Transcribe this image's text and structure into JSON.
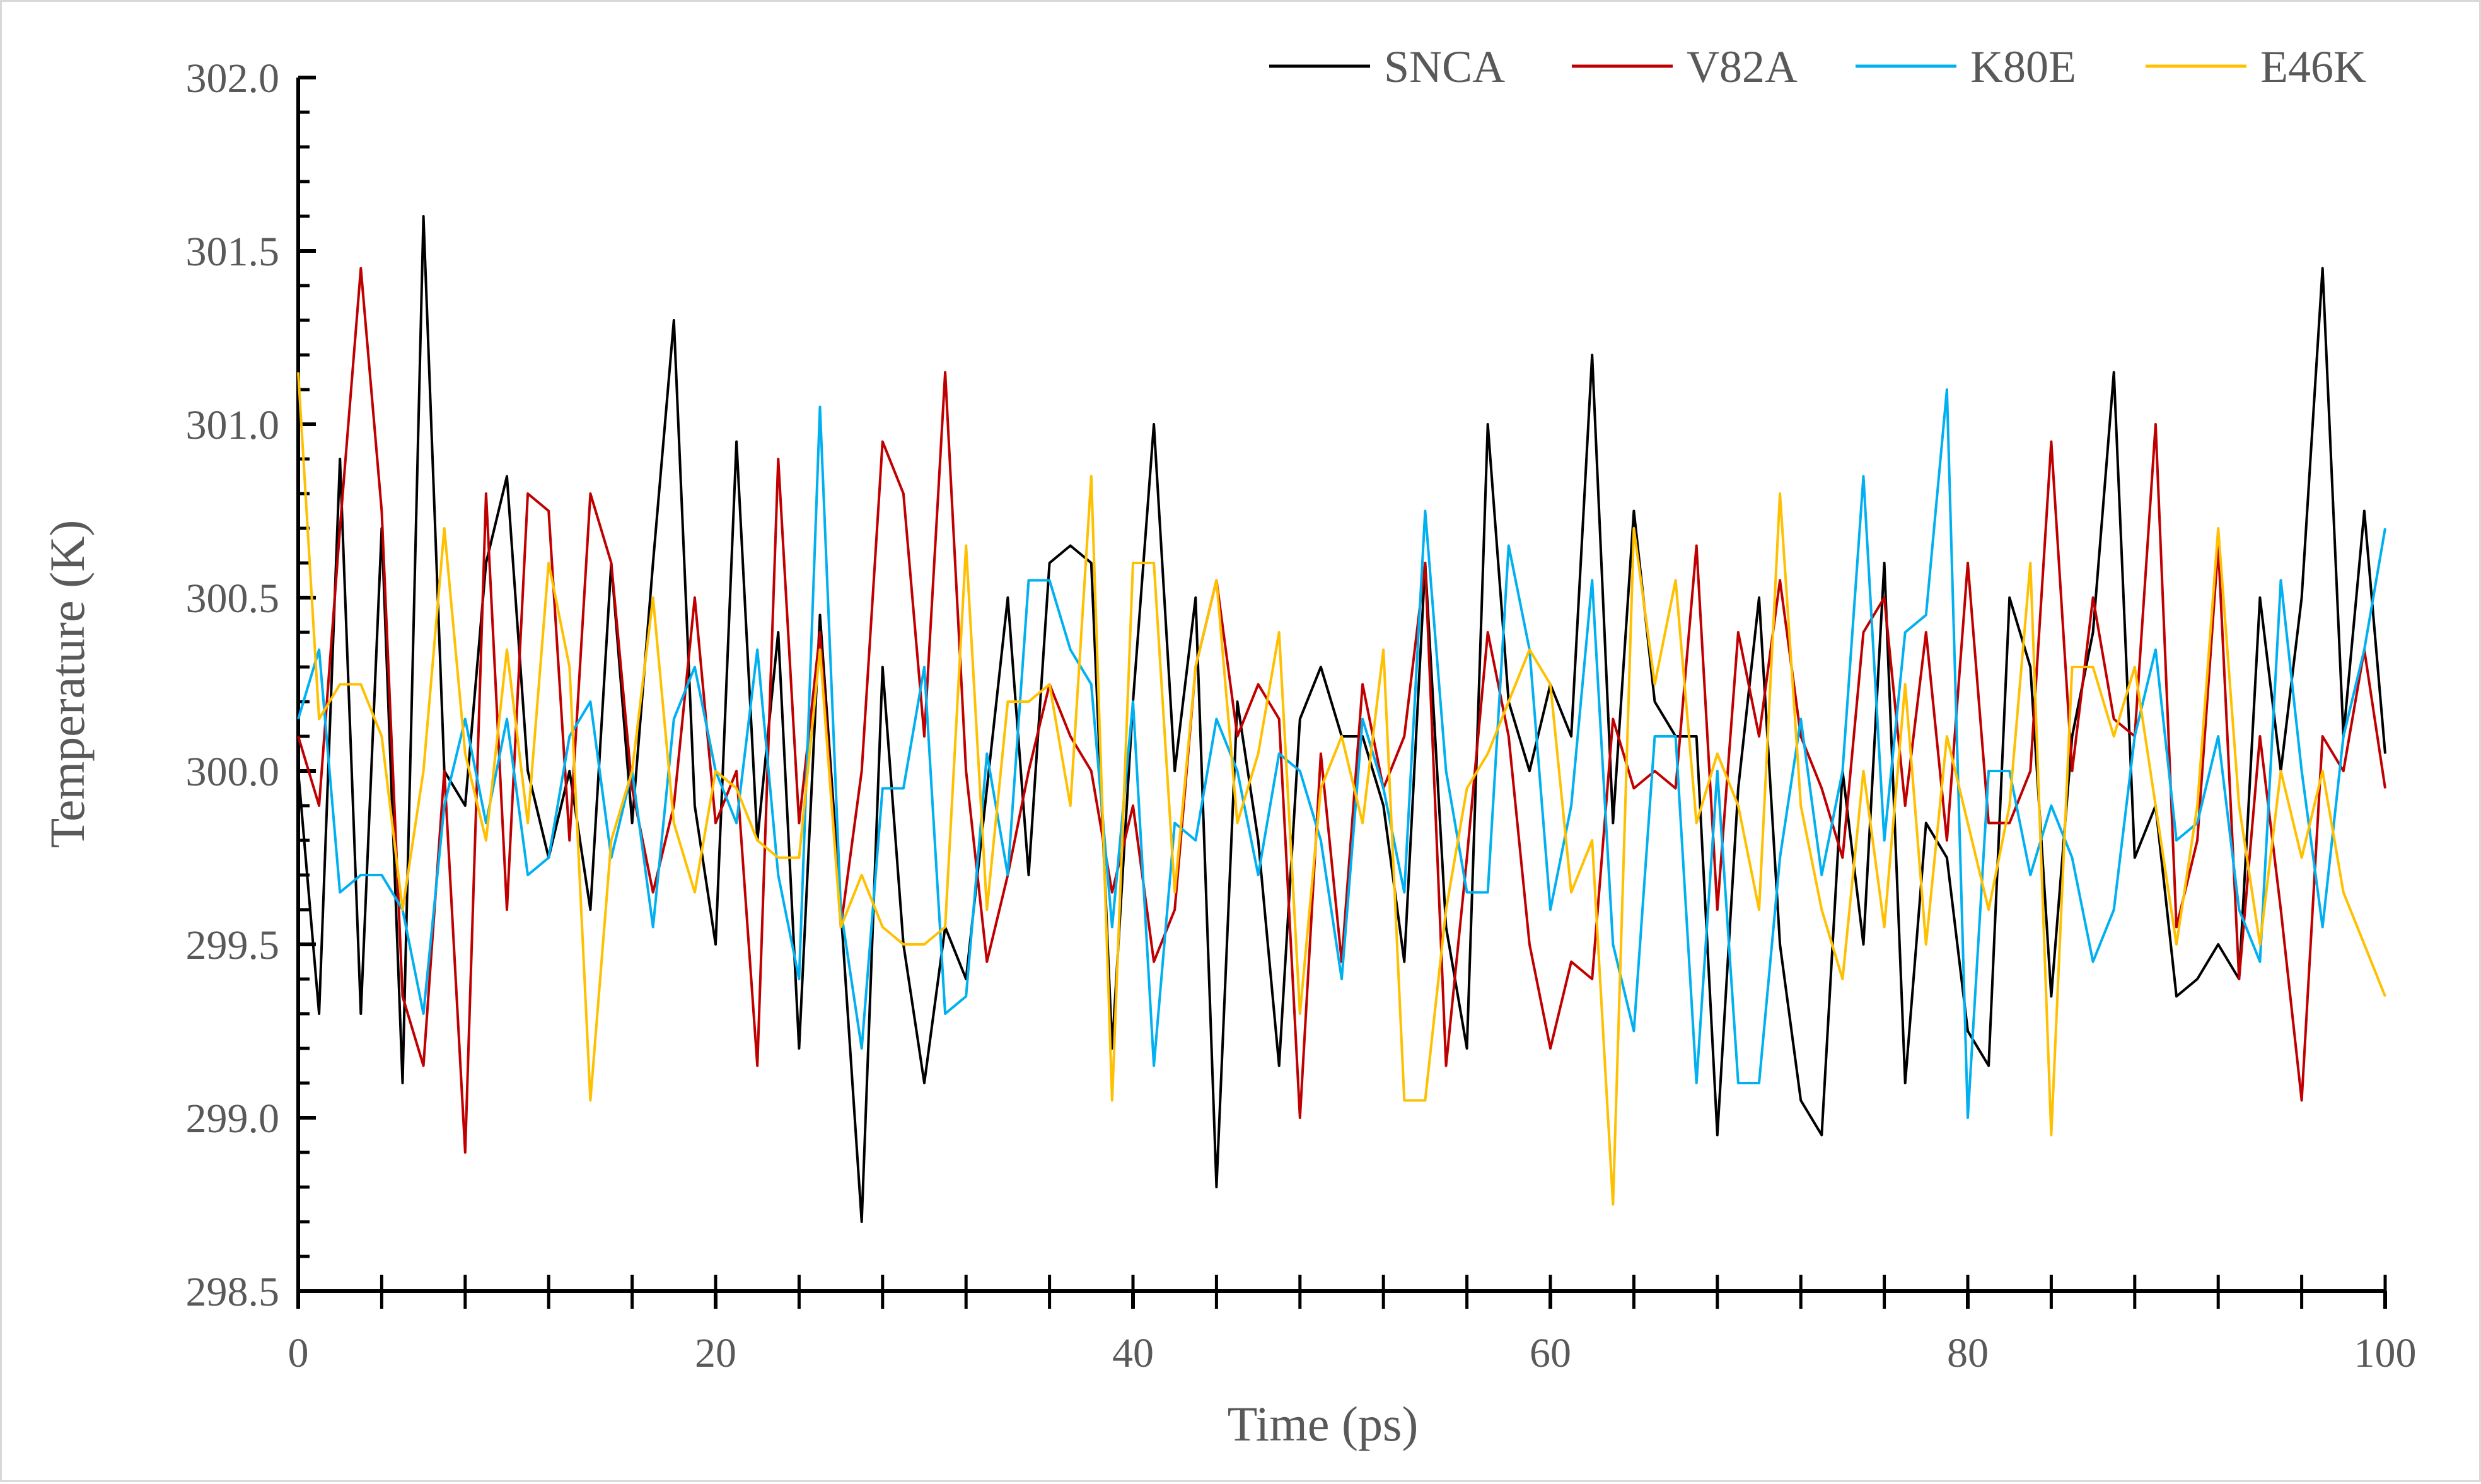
{
  "chart_data": {
    "type": "line",
    "title": "",
    "xlabel": "Time (ps)",
    "ylabel": "Temperature (K)",
    "xlim": [
      0,
      100
    ],
    "ylim": [
      298.5,
      302.0
    ],
    "xticks": [
      "0",
      "20",
      "40",
      "60",
      "80",
      "100"
    ],
    "yticks": [
      "298.5",
      "299.0",
      "299.5",
      "300.0",
      "300.5",
      "301.0",
      "301.5",
      "302.0"
    ],
    "grid": false,
    "legend_position": "top-right",
    "x": [
      0,
      1,
      2,
      3,
      4,
      5,
      6,
      7,
      8,
      9,
      10,
      11,
      12,
      13,
      14,
      15,
      16,
      17,
      18,
      19,
      20,
      21,
      22,
      23,
      24,
      25,
      26,
      27,
      28,
      29,
      30,
      31,
      32,
      33,
      34,
      35,
      36,
      37,
      38,
      39,
      40,
      41,
      42,
      43,
      44,
      45,
      46,
      47,
      48,
      49,
      50,
      51,
      52,
      53,
      54,
      55,
      56,
      57,
      58,
      59,
      60,
      61,
      62,
      63,
      64,
      65,
      66,
      67,
      68,
      69,
      70,
      71,
      72,
      73,
      74,
      75,
      76,
      77,
      78,
      79,
      80,
      81,
      82,
      83,
      84,
      85,
      86,
      87,
      88,
      89,
      90,
      91,
      92,
      93,
      94,
      95,
      96,
      97,
      98,
      99,
      100
    ],
    "series": [
      {
        "name": "SNCA",
        "color": "#000000",
        "values": [
          300.0,
          299.3,
          300.9,
          299.3,
          300.7,
          299.1,
          301.6,
          300.0,
          299.9,
          300.6,
          300.85,
          300.0,
          299.75,
          300.0,
          299.6,
          300.6,
          299.85,
          300.6,
          301.3,
          299.9,
          299.5,
          300.95,
          299.8,
          300.4,
          299.2,
          300.45,
          299.6,
          298.7,
          300.3,
          299.5,
          299.1,
          299.55,
          299.4,
          299.95,
          300.5,
          299.7,
          300.6,
          300.65,
          300.6,
          299.2,
          300.2,
          301.0,
          300.0,
          300.5,
          298.8,
          300.2,
          299.8,
          299.15,
          300.15,
          300.3,
          300.1,
          300.1,
          299.9,
          299.45,
          300.6,
          299.55,
          299.2,
          301.0,
          300.2,
          300.0,
          300.25,
          300.1,
          301.2,
          299.85,
          300.75,
          300.2,
          300.1,
          300.1,
          298.95,
          299.95,
          300.5,
          299.5,
          299.05,
          298.95,
          300.0,
          299.5,
          300.6,
          299.1,
          299.85,
          299.75,
          299.25,
          299.15,
          300.5,
          300.3,
          299.35,
          300.1,
          300.4,
          301.15,
          299.75,
          299.9,
          299.35,
          299.4,
          299.5,
          299.4,
          300.5,
          300.0,
          300.5,
          301.45,
          300.1,
          300.75,
          300.05
        ]
      },
      {
        "name": "V82A",
        "color": "#c00000",
        "values": [
          300.1,
          299.9,
          300.7,
          301.45,
          300.75,
          299.35,
          299.15,
          300.0,
          298.9,
          300.8,
          299.6,
          300.8,
          300.75,
          299.8,
          300.8,
          300.6,
          299.95,
          299.65,
          299.9,
          300.5,
          299.85,
          300.0,
          299.15,
          300.9,
          299.85,
          300.4,
          299.55,
          300.0,
          300.95,
          300.8,
          300.1,
          301.15,
          300.0,
          299.45,
          299.7,
          300.0,
          300.25,
          300.1,
          300.0,
          299.65,
          299.9,
          299.45,
          299.6,
          300.3,
          300.55,
          300.1,
          300.25,
          300.15,
          299.0,
          300.05,
          299.45,
          300.25,
          299.95,
          300.1,
          300.6,
          299.15,
          299.75,
          300.4,
          300.1,
          299.5,
          299.2,
          299.45,
          299.4,
          300.15,
          299.95,
          300.0,
          299.95,
          300.65,
          299.6,
          300.4,
          300.1,
          300.55,
          300.1,
          299.95,
          299.75,
          300.4,
          300.5,
          299.9,
          300.4,
          299.8,
          300.6,
          299.85,
          299.85,
          300.0,
          300.95,
          300.0,
          300.5,
          300.15,
          300.1,
          301.0,
          299.55,
          299.8,
          300.65,
          299.4,
          300.1,
          299.6,
          299.05,
          300.1,
          300.0,
          300.35,
          299.95
        ]
      },
      {
        "name": "K80E",
        "color": "#00b0f0",
        "values": [
          300.15,
          300.35,
          299.65,
          299.7,
          299.7,
          299.6,
          299.3,
          299.9,
          300.15,
          299.85,
          300.15,
          299.7,
          299.75,
          300.1,
          300.2,
          299.75,
          300.0,
          299.55,
          300.15,
          300.3,
          300.0,
          299.85,
          300.35,
          299.7,
          299.4,
          301.05,
          299.6,
          299.2,
          299.95,
          299.95,
          300.3,
          299.3,
          299.35,
          300.05,
          299.7,
          300.55,
          300.55,
          300.35,
          300.25,
          299.55,
          300.2,
          299.15,
          299.85,
          299.8,
          300.15,
          300.0,
          299.7,
          300.05,
          300.0,
          299.8,
          299.4,
          300.15,
          299.95,
          299.65,
          300.75,
          300.0,
          299.65,
          299.65,
          300.65,
          300.35,
          299.6,
          299.9,
          300.55,
          299.5,
          299.25,
          300.1,
          300.1,
          299.1,
          300.0,
          299.1,
          299.1,
          299.75,
          300.15,
          299.7,
          300.0,
          300.85,
          299.8,
          300.4,
          300.45,
          301.1,
          299.0,
          300.0,
          300.0,
          299.7,
          299.9,
          299.75,
          299.45,
          299.6,
          300.1,
          300.35,
          299.8,
          299.85,
          300.1,
          299.6,
          299.45,
          300.55,
          300.0,
          299.55,
          300.1,
          300.35,
          300.7
        ]
      },
      {
        "name": "E46K",
        "color": "#ffc000",
        "values": [
          301.15,
          300.15,
          300.25,
          300.25,
          300.1,
          299.6,
          300.0,
          300.7,
          300.05,
          299.8,
          300.35,
          299.85,
          300.6,
          300.3,
          299.05,
          299.8,
          300.0,
          300.5,
          299.85,
          299.65,
          300.0,
          299.95,
          299.8,
          299.75,
          299.75,
          300.35,
          299.55,
          299.7,
          299.55,
          299.5,
          299.5,
          299.55,
          300.65,
          299.6,
          300.2,
          300.2,
          300.25,
          299.9,
          300.85,
          299.05,
          300.6,
          300.6,
          299.65,
          300.3,
          300.55,
          299.85,
          300.05,
          300.4,
          299.3,
          299.95,
          300.1,
          299.85,
          300.35,
          299.05,
          299.05,
          299.6,
          299.95,
          300.05,
          300.2,
          300.35,
          300.25,
          299.65,
          299.8,
          298.75,
          300.7,
          300.25,
          300.55,
          299.85,
          300.05,
          299.9,
          299.6,
          300.8,
          299.9,
          299.6,
          299.4,
          300.0,
          299.55,
          300.25,
          299.5,
          300.1,
          299.85,
          299.6,
          299.9,
          300.6,
          298.95,
          300.3,
          300.3,
          300.1,
          300.3,
          299.9,
          299.5,
          299.9,
          300.7,
          299.9,
          299.5,
          300.0,
          299.75,
          300.0,
          299.65,
          299.5,
          299.35
        ]
      }
    ]
  }
}
